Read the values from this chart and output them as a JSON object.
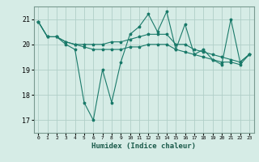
{
  "title": "",
  "xlabel": "Humidex (Indice chaleur)",
  "ylabel": "",
  "bg_color": "#d6ece6",
  "grid_color": "#b0cfc8",
  "line_color": "#1a7a6a",
  "xlim": [
    -0.5,
    23.5
  ],
  "ylim": [
    16.5,
    21.5
  ],
  "yticks": [
    17,
    18,
    19,
    20,
    21
  ],
  "xticks": [
    0,
    1,
    2,
    3,
    4,
    5,
    6,
    7,
    8,
    9,
    10,
    11,
    12,
    13,
    14,
    15,
    16,
    17,
    18,
    19,
    20,
    21,
    22,
    23
  ],
  "series": [
    [
      20.9,
      20.3,
      20.3,
      20.0,
      19.8,
      17.7,
      17.0,
      19.0,
      17.7,
      19.3,
      20.4,
      20.7,
      21.2,
      20.5,
      21.3,
      19.8,
      20.8,
      19.6,
      19.8,
      19.4,
      19.2,
      21.0,
      19.3,
      19.6
    ],
    [
      20.9,
      20.3,
      20.3,
      20.1,
      20.0,
      20.0,
      20.0,
      20.0,
      20.1,
      20.1,
      20.2,
      20.3,
      20.4,
      20.4,
      20.4,
      20.0,
      20.0,
      19.8,
      19.7,
      19.6,
      19.5,
      19.4,
      19.3,
      19.6
    ],
    [
      20.9,
      20.3,
      20.3,
      20.1,
      20.0,
      19.9,
      19.8,
      19.8,
      19.8,
      19.8,
      19.9,
      19.9,
      20.0,
      20.0,
      20.0,
      19.8,
      19.7,
      19.6,
      19.5,
      19.4,
      19.3,
      19.3,
      19.2,
      19.6
    ]
  ]
}
